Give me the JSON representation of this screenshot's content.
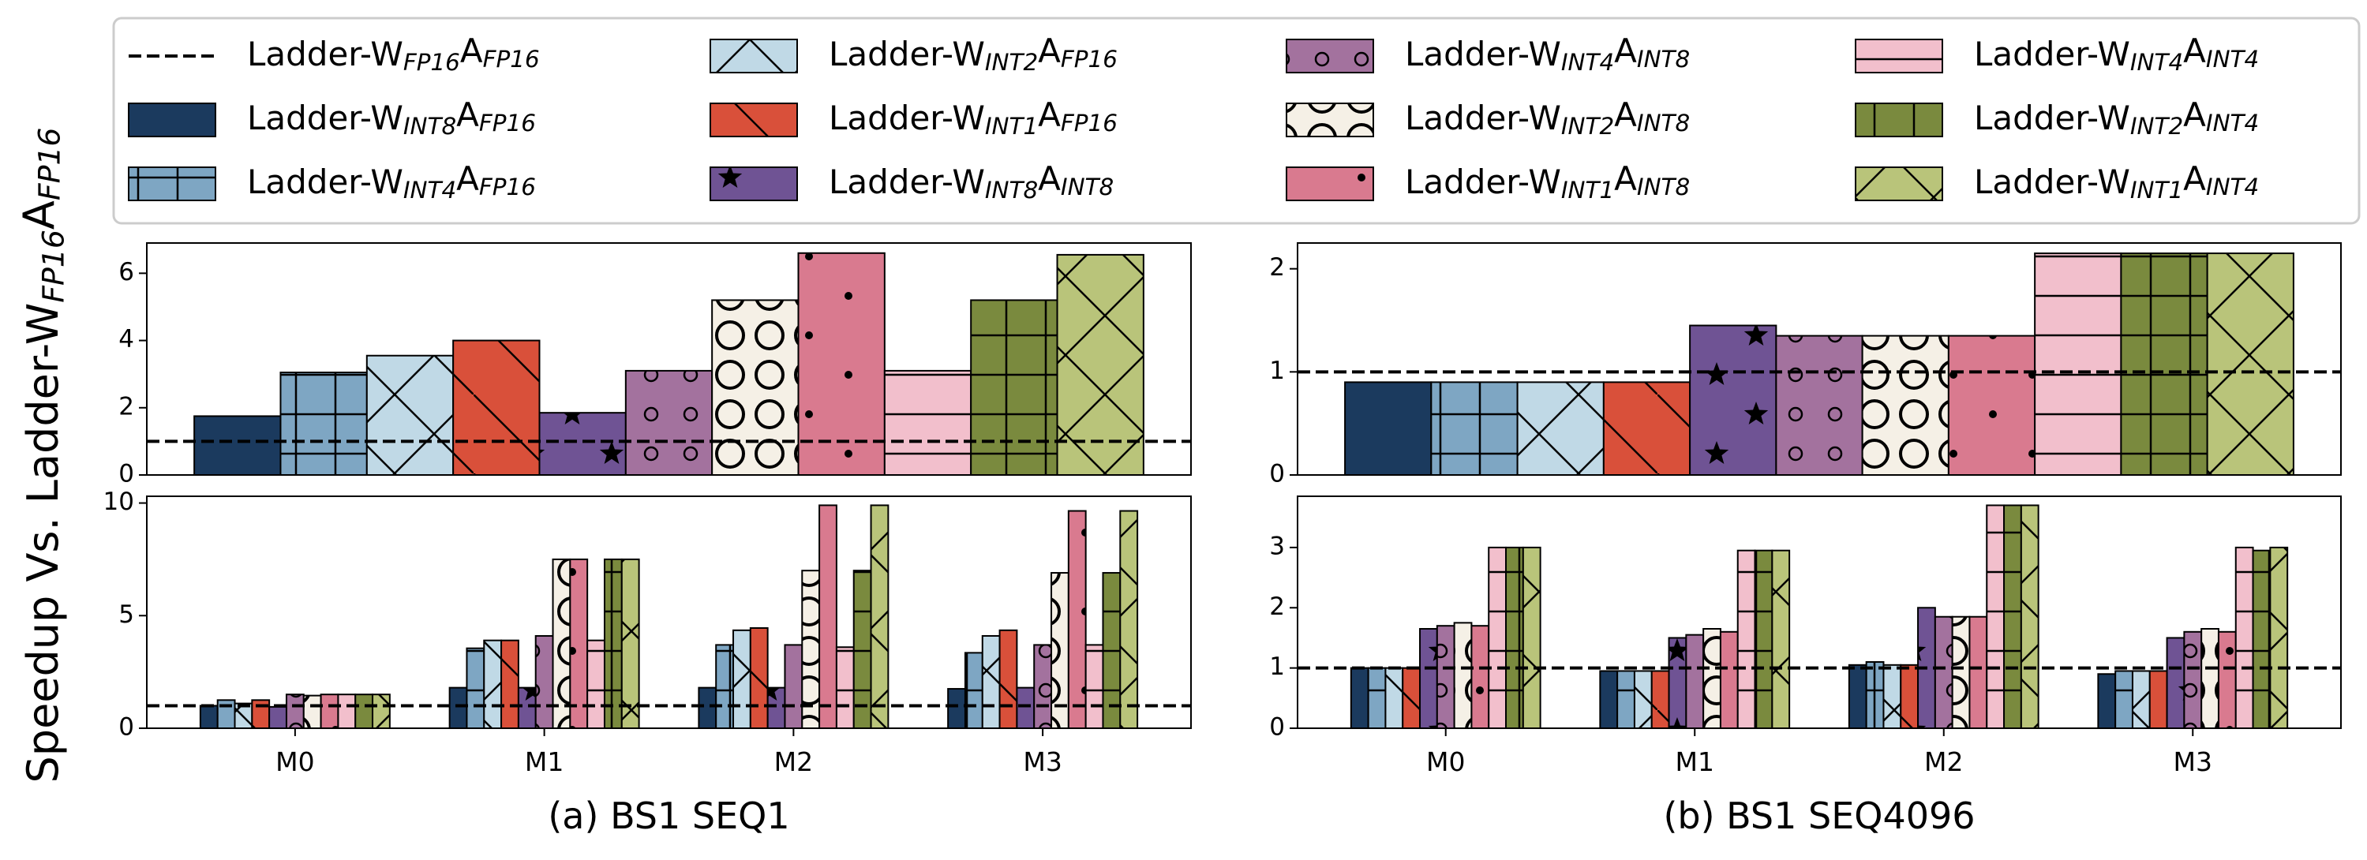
{
  "ylabel": "Speedup Vs. Ladder-W_{FP16}A_{FP16}",
  "chart_data": [
    {
      "type": "bar",
      "categories": [
        null
      ],
      "ylim": [
        0,
        6.9
      ],
      "yticks": [
        0,
        2,
        4,
        6
      ],
      "reference": {
        "name": "Ladder-W_{FP16}A_{FP16}",
        "value": 1
      },
      "series": [
        {
          "name": "Ladder-W_{INT8}A_{FP16}",
          "color": "#1b3a5e",
          "values": [
            1.75
          ]
        },
        {
          "name": "Ladder-W_{INT4}A_{FP16}",
          "color": "#7ea6c3",
          "hatch": "+",
          "values": [
            3.05
          ]
        },
        {
          "name": "Ladder-W_{INT2}A_{FP16}",
          "color": "#c0d9e6",
          "hatch": "x",
          "values": [
            3.55
          ]
        },
        {
          "name": "Ladder-W_{INT1}A_{FP16}",
          "color": "#d9503a",
          "hatch": "\\",
          "values": [
            4.0
          ]
        },
        {
          "name": "Ladder-W_{INT8}A_{INT8}",
          "color": "#6f5394",
          "hatch": "*",
          "values": [
            1.85
          ]
        },
        {
          "name": "Ladder-W_{INT4}A_{INT8}",
          "color": "#a3729e",
          "hatch": "o",
          "values": [
            3.1
          ]
        },
        {
          "name": "Ladder-W_{INT2}A_{INT8}",
          "color": "#f5f0e6",
          "hatch": "O",
          "values": [
            5.2
          ]
        },
        {
          "name": "Ladder-W_{INT1}A_{INT8}",
          "color": "#d97a8f",
          "hatch": ".",
          "values": [
            6.6
          ]
        },
        {
          "name": "Ladder-W_{INT4}A_{INT4}",
          "color": "#f2bfcc",
          "hatch": "-",
          "values": [
            3.1
          ]
        },
        {
          "name": "Ladder-W_{INT2}A_{INT4}",
          "color": "#7a8a3e",
          "hatch": "+",
          "values": [
            5.2
          ]
        },
        {
          "name": "Ladder-W_{INT1}A_{INT4}",
          "color": "#b9c47a",
          "hatch": "x",
          "values": [
            6.55
          ]
        }
      ]
    },
    {
      "type": "bar",
      "categories": [
        null
      ],
      "ylim": [
        0,
        2.25
      ],
      "yticks": [
        0,
        1,
        2
      ],
      "reference": {
        "name": "Ladder-W_{FP16}A_{FP16}",
        "value": 1
      },
      "series": [
        {
          "name": "Ladder-W_{INT8}A_{FP16}",
          "color": "#1b3a5e",
          "values": [
            0.9
          ]
        },
        {
          "name": "Ladder-W_{INT4}A_{FP16}",
          "color": "#7ea6c3",
          "hatch": "+",
          "values": [
            0.9
          ]
        },
        {
          "name": "Ladder-W_{INT2}A_{FP16}",
          "color": "#c0d9e6",
          "hatch": "x",
          "values": [
            0.9
          ]
        },
        {
          "name": "Ladder-W_{INT1}A_{FP16}",
          "color": "#d9503a",
          "hatch": "\\",
          "values": [
            0.9
          ]
        },
        {
          "name": "Ladder-W_{INT8}A_{INT8}",
          "color": "#6f5394",
          "hatch": "*",
          "values": [
            1.45
          ]
        },
        {
          "name": "Ladder-W_{INT4}A_{INT8}",
          "color": "#a3729e",
          "hatch": "o",
          "values": [
            1.35
          ]
        },
        {
          "name": "Ladder-W_{INT2}A_{INT8}",
          "color": "#f5f0e6",
          "hatch": "O",
          "values": [
            1.35
          ]
        },
        {
          "name": "Ladder-W_{INT1}A_{INT8}",
          "color": "#d97a8f",
          "hatch": ".",
          "values": [
            1.35
          ]
        },
        {
          "name": "Ladder-W_{INT4}A_{INT4}",
          "color": "#f2bfcc",
          "hatch": "-",
          "values": [
            2.15
          ]
        },
        {
          "name": "Ladder-W_{INT2}A_{INT4}",
          "color": "#7a8a3e",
          "hatch": "+",
          "values": [
            2.15
          ]
        },
        {
          "name": "Ladder-W_{INT1}A_{INT4}",
          "color": "#b9c47a",
          "hatch": "x",
          "values": [
            2.15
          ]
        }
      ]
    },
    {
      "type": "bar",
      "xlabel": "(a) BS1 SEQ1",
      "categories": [
        "M0",
        "M1",
        "M2",
        "M3"
      ],
      "ylim": [
        0,
        10.3
      ],
      "yticks": [
        0,
        5,
        10
      ],
      "reference": {
        "name": "Ladder-W_{FP16}A_{FP16}",
        "value": 1
      },
      "series": [
        {
          "name": "Ladder-W_{INT8}A_{FP16}",
          "color": "#1b3a5e",
          "values": [
            1.0,
            1.8,
            1.8,
            1.75
          ]
        },
        {
          "name": "Ladder-W_{INT4}A_{FP16}",
          "color": "#7ea6c3",
          "hatch": "+",
          "values": [
            1.25,
            3.55,
            3.7,
            3.35
          ]
        },
        {
          "name": "Ladder-W_{INT2}A_{FP16}",
          "color": "#c0d9e6",
          "hatch": "x",
          "values": [
            1.1,
            3.9,
            4.35,
            4.1
          ]
        },
        {
          "name": "Ladder-W_{INT1}A_{FP16}",
          "color": "#d9503a",
          "hatch": "\\",
          "values": [
            1.25,
            3.9,
            4.45,
            4.35
          ]
        },
        {
          "name": "Ladder-W_{INT8}A_{INT8}",
          "color": "#6f5394",
          "hatch": "*",
          "values": [
            0.95,
            1.8,
            1.8,
            1.8
          ]
        },
        {
          "name": "Ladder-W_{INT4}A_{INT8}",
          "color": "#a3729e",
          "hatch": "o",
          "values": [
            1.5,
            4.1,
            3.7,
            3.7
          ]
        },
        {
          "name": "Ladder-W_{INT2}A_{INT8}",
          "color": "#f5f0e6",
          "hatch": "O",
          "values": [
            1.45,
            7.5,
            7.0,
            6.9
          ]
        },
        {
          "name": "Ladder-W_{INT1}A_{INT8}",
          "color": "#d97a8f",
          "hatch": ".",
          "values": [
            1.5,
            7.5,
            9.9,
            9.65
          ]
        },
        {
          "name": "Ladder-W_{INT4}A_{INT4}",
          "color": "#f2bfcc",
          "hatch": "-",
          "values": [
            1.5,
            3.9,
            3.6,
            3.7
          ]
        },
        {
          "name": "Ladder-W_{INT2}A_{INT4}",
          "color": "#7a8a3e",
          "hatch": "+",
          "values": [
            1.5,
            7.5,
            7.0,
            6.9
          ]
        },
        {
          "name": "Ladder-W_{INT1}A_{INT4}",
          "color": "#b9c47a",
          "hatch": "x",
          "values": [
            1.5,
            7.5,
            9.9,
            9.65
          ]
        }
      ]
    },
    {
      "type": "bar",
      "xlabel": "(b) BS1 SEQ4096",
      "categories": [
        "M0",
        "M1",
        "M2",
        "M3"
      ],
      "ylim": [
        0,
        3.85
      ],
      "yticks": [
        0,
        1,
        2,
        3
      ],
      "reference": {
        "name": "Ladder-W_{FP16}A_{FP16}",
        "value": 1
      },
      "series": [
        {
          "name": "Ladder-W_{INT8}A_{FP16}",
          "color": "#1b3a5e",
          "values": [
            1.0,
            0.95,
            1.05,
            0.9
          ]
        },
        {
          "name": "Ladder-W_{INT4}A_{FP16}",
          "color": "#7ea6c3",
          "hatch": "+",
          "values": [
            1.0,
            0.95,
            1.1,
            0.95
          ]
        },
        {
          "name": "Ladder-W_{INT2}A_{FP16}",
          "color": "#c0d9e6",
          "hatch": "x",
          "values": [
            1.0,
            0.95,
            1.05,
            0.95
          ]
        },
        {
          "name": "Ladder-W_{INT1}A_{FP16}",
          "color": "#d9503a",
          "hatch": "\\",
          "values": [
            1.0,
            0.95,
            1.05,
            0.95
          ]
        },
        {
          "name": "Ladder-W_{INT8}A_{INT8}",
          "color": "#6f5394",
          "hatch": "*",
          "values": [
            1.65,
            1.5,
            2.0,
            1.5
          ]
        },
        {
          "name": "Ladder-W_{INT4}A_{INT8}",
          "color": "#a3729e",
          "hatch": "o",
          "values": [
            1.7,
            1.55,
            1.85,
            1.6
          ]
        },
        {
          "name": "Ladder-W_{INT2}A_{INT8}",
          "color": "#f5f0e6",
          "hatch": "O",
          "values": [
            1.75,
            1.65,
            1.85,
            1.65
          ]
        },
        {
          "name": "Ladder-W_{INT1}A_{INT8}",
          "color": "#d97a8f",
          "hatch": ".",
          "values": [
            1.7,
            1.6,
            1.85,
            1.6
          ]
        },
        {
          "name": "Ladder-W_{INT4}A_{INT4}",
          "color": "#f2bfcc",
          "hatch": "-",
          "values": [
            3.0,
            2.95,
            3.7,
            3.0
          ]
        },
        {
          "name": "Ladder-W_{INT2}A_{INT4}",
          "color": "#7a8a3e",
          "hatch": "+",
          "values": [
            3.0,
            2.95,
            3.7,
            2.95
          ]
        },
        {
          "name": "Ladder-W_{INT1}A_{INT4}",
          "color": "#b9c47a",
          "hatch": "x",
          "values": [
            3.0,
            2.95,
            3.7,
            3.0
          ]
        }
      ]
    }
  ]
}
